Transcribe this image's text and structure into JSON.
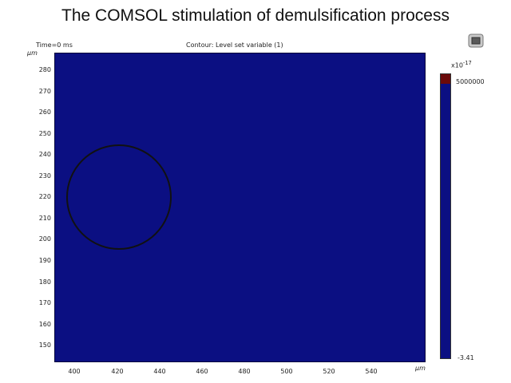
{
  "header": {
    "title": "The COMSOL stimulation of demulsification process"
  },
  "plot": {
    "time_label": "Time=0 ms",
    "subtitle": "Contour: Level set variable (1)",
    "y_unit": "μm",
    "x_unit": "μm",
    "y_ticks": [
      "280",
      "270",
      "260",
      "250",
      "240",
      "230",
      "220",
      "210",
      "200",
      "190",
      "180",
      "170",
      "160",
      "150"
    ],
    "x_ticks": [
      "400",
      "420",
      "440",
      "460",
      "480",
      "500",
      "520",
      "540"
    ]
  },
  "colorbar": {
    "exponent_label": "x10",
    "exponent_sup": "-17",
    "max_label": "5000000",
    "min_label": "-3.41"
  },
  "colors": {
    "field": "#0b0f82",
    "top": "#6b0a0a",
    "contour": "#111111"
  },
  "icons": [
    "window-icon"
  ]
}
